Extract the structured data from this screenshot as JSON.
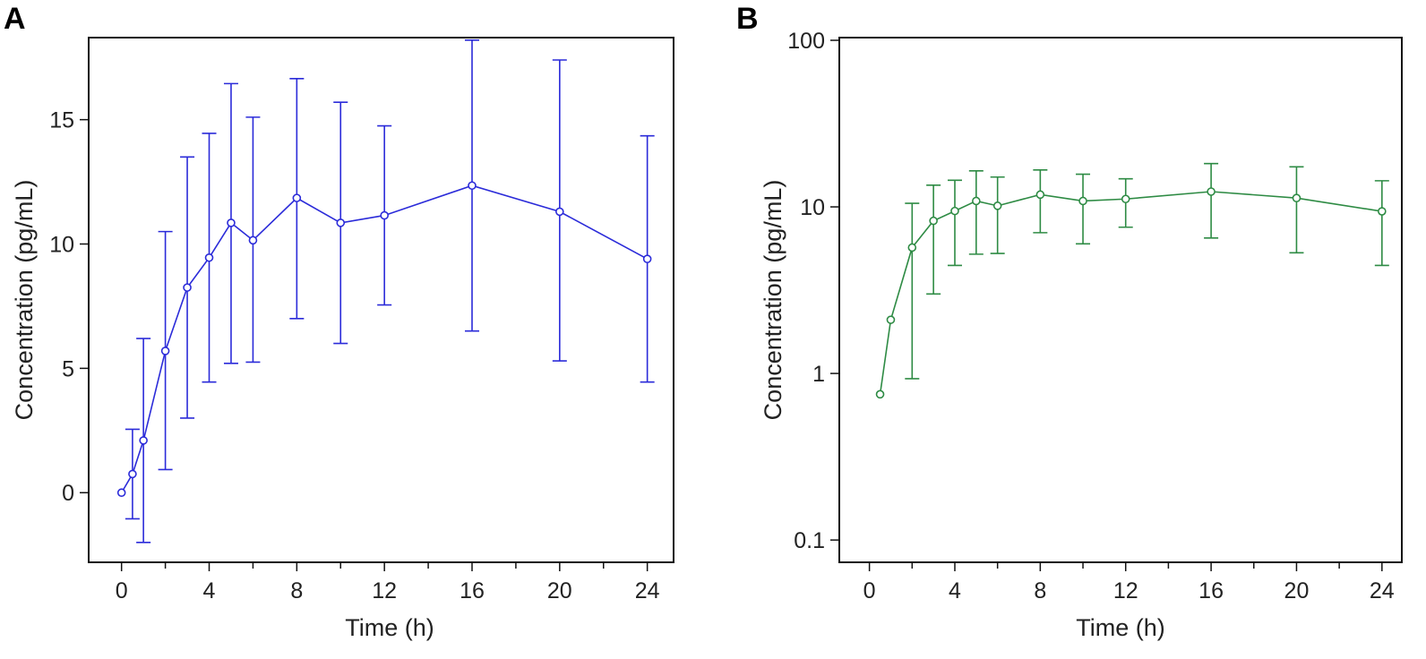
{
  "chart_data": [
    {
      "panel_label": "A",
      "type": "line",
      "yscale": "linear",
      "xlabel": "Time (h)",
      "ylabel": "Concentration (pg/mL)",
      "xlim": [
        -1.5,
        25.2
      ],
      "ylim": [
        -2.8,
        18.3
      ],
      "xticks": [
        0,
        4,
        8,
        12,
        16,
        20,
        24
      ],
      "xminor_step": 2,
      "yticks": [
        0,
        5,
        10,
        15
      ],
      "color": "#2b2bd9",
      "x": [
        0,
        0.5,
        1,
        2,
        3,
        4,
        5,
        6,
        8,
        10,
        12,
        16,
        20,
        24
      ],
      "y": [
        0,
        0.75,
        2.1,
        5.7,
        8.25,
        9.45,
        10.85,
        10.15,
        11.85,
        10.85,
        11.15,
        12.35,
        11.3,
        9.4
      ],
      "err_high": [
        null,
        2.55,
        6.2,
        10.5,
        13.5,
        14.45,
        16.45,
        15.1,
        16.65,
        15.7,
        14.75,
        18.2,
        17.4,
        14.35
      ],
      "err_low": [
        null,
        -1.05,
        -2.0,
        0.93,
        3.0,
        4.45,
        5.2,
        5.25,
        7.0,
        6.0,
        7.55,
        6.5,
        5.3,
        4.45
      ]
    },
    {
      "panel_label": "B",
      "type": "line",
      "yscale": "log",
      "xlabel": "Time (h)",
      "ylabel": "Concentration (pg/mL)",
      "xlim": [
        -1.41,
        24.93
      ],
      "ylim": [
        0.0735,
        103.8
      ],
      "xticks": [
        0,
        4,
        8,
        12,
        16,
        20,
        24
      ],
      "xminor_step": 2,
      "yticks": [
        0.1,
        1,
        10,
        100
      ],
      "ytick_labels": [
        "0.1",
        "1",
        "10",
        "100"
      ],
      "color": "#2e8b44",
      "x": [
        0.5,
        1,
        2,
        3,
        4,
        5,
        6,
        8,
        10,
        12,
        16,
        20,
        24
      ],
      "y": [
        0.75,
        2.1,
        5.7,
        8.25,
        9.45,
        10.85,
        10.15,
        11.85,
        10.85,
        11.15,
        12.35,
        11.3,
        9.4
      ],
      "err_high": [
        null,
        null,
        10.5,
        13.5,
        14.45,
        16.45,
        15.1,
        16.65,
        15.7,
        14.75,
        18.2,
        17.4,
        14.35
      ],
      "err_low": [
        null,
        null,
        0.93,
        3.0,
        4.45,
        5.2,
        5.25,
        7.0,
        6.0,
        7.55,
        6.5,
        5.3,
        4.45
      ]
    }
  ]
}
